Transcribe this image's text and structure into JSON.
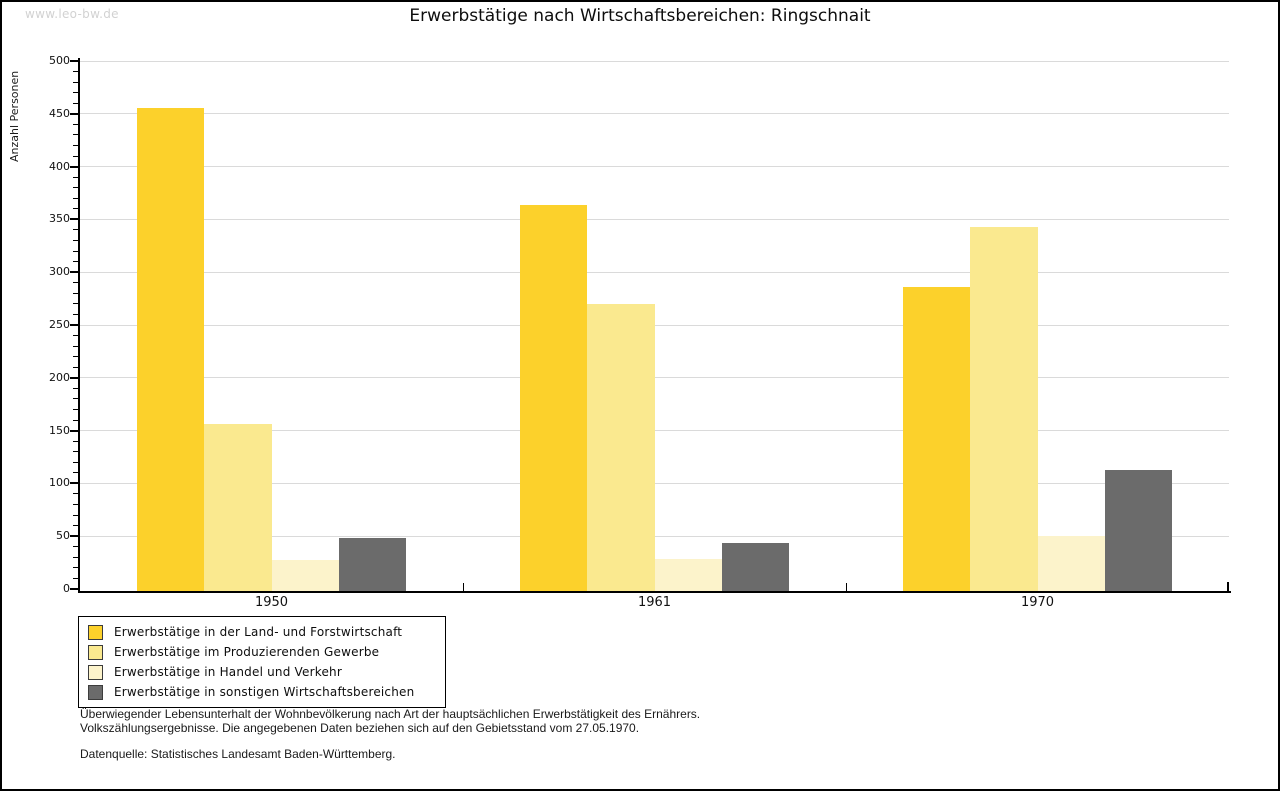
{
  "watermark": "www.leo-bw.de",
  "title": "Erwerbstätige nach Wirtschaftsbereichen: Ringschnait",
  "chart_data": {
    "type": "bar",
    "title": "Erwerbstätige nach Wirtschaftsbereichen: Ringschnait",
    "xlabel": "",
    "ylabel": "Anzahl Personen",
    "categories": [
      "1950",
      "1961",
      "1970"
    ],
    "series": [
      {
        "name": "Erwerbstätige in der Land- und Forstwirtschaft",
        "color": "#FCD12B",
        "values": [
          457,
          366,
          288
        ]
      },
      {
        "name": "Erwerbstätige im Produzierenden Gewerbe",
        "color": "#FAE98F",
        "values": [
          158,
          272,
          345
        ]
      },
      {
        "name": "Erwerbstätige in Handel und Verkehr",
        "color": "#FCF3CB",
        "values": [
          29,
          30,
          52
        ]
      },
      {
        "name": "Erwerbstätige in sonstigen Wirtschaftsbereichen",
        "color": "#6B6B6B",
        "values": [
          50,
          45,
          115
        ]
      }
    ],
    "ylim": [
      0,
      500
    ],
    "ytick_step": 50,
    "minor_tick_step": 10,
    "grid": true,
    "legend_position": "bottom-left"
  },
  "colors": {
    "grid": "#DADADA",
    "axis": "#000000",
    "watermark": "#D2D2D2"
  },
  "footnotes": {
    "line1": "Überwiegender Lebensunterhalt der Wohnbevölkerung nach Art der hauptsächlichen Erwerbstätigkeit des Ernährers.",
    "line2": "Volkszählungsergebnisse. Die angegebenen Daten beziehen sich auf den Gebietsstand vom 27.05.1970.",
    "source": "Datenquelle: Statistisches Landesamt Baden-Württemberg."
  }
}
